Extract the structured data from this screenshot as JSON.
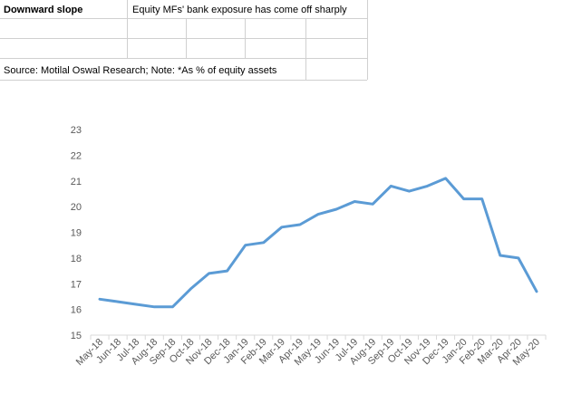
{
  "header": {
    "title": "Downward slope",
    "subtitle": "Equity MFs' bank exposure has come off sharply",
    "source": "Source: Motilal Oswal Research; Note: *As % of equity assets"
  },
  "chart_data": {
    "type": "line",
    "categories": [
      "May-18",
      "Jun-18",
      "Jul-18",
      "Aug-18",
      "Sep-18",
      "Oct-18",
      "Nov-18",
      "Dec-18",
      "Jan-19",
      "Feb-19",
      "Mar-19",
      "Apr-19",
      "May-19",
      "Jun-19",
      "Jul-19",
      "Aug-19",
      "Sep-19",
      "Oct-19",
      "Nov-19",
      "Dec-19",
      "Jan-20",
      "Feb-20",
      "Mar-20",
      "Apr-20",
      "May-20"
    ],
    "values": [
      16.4,
      16.3,
      16.2,
      16.1,
      16.1,
      16.8,
      17.4,
      17.5,
      18.5,
      18.6,
      19.2,
      19.3,
      19.7,
      19.9,
      20.2,
      20.1,
      20.8,
      20.6,
      20.8,
      21.1,
      20.3,
      20.3,
      18.1,
      18.0,
      16.7
    ],
    "color": "#5b9bd5",
    "ylim": [
      15,
      23
    ],
    "yticks": [
      15,
      16,
      17,
      18,
      19,
      20,
      21,
      22,
      23
    ],
    "grid": false
  }
}
